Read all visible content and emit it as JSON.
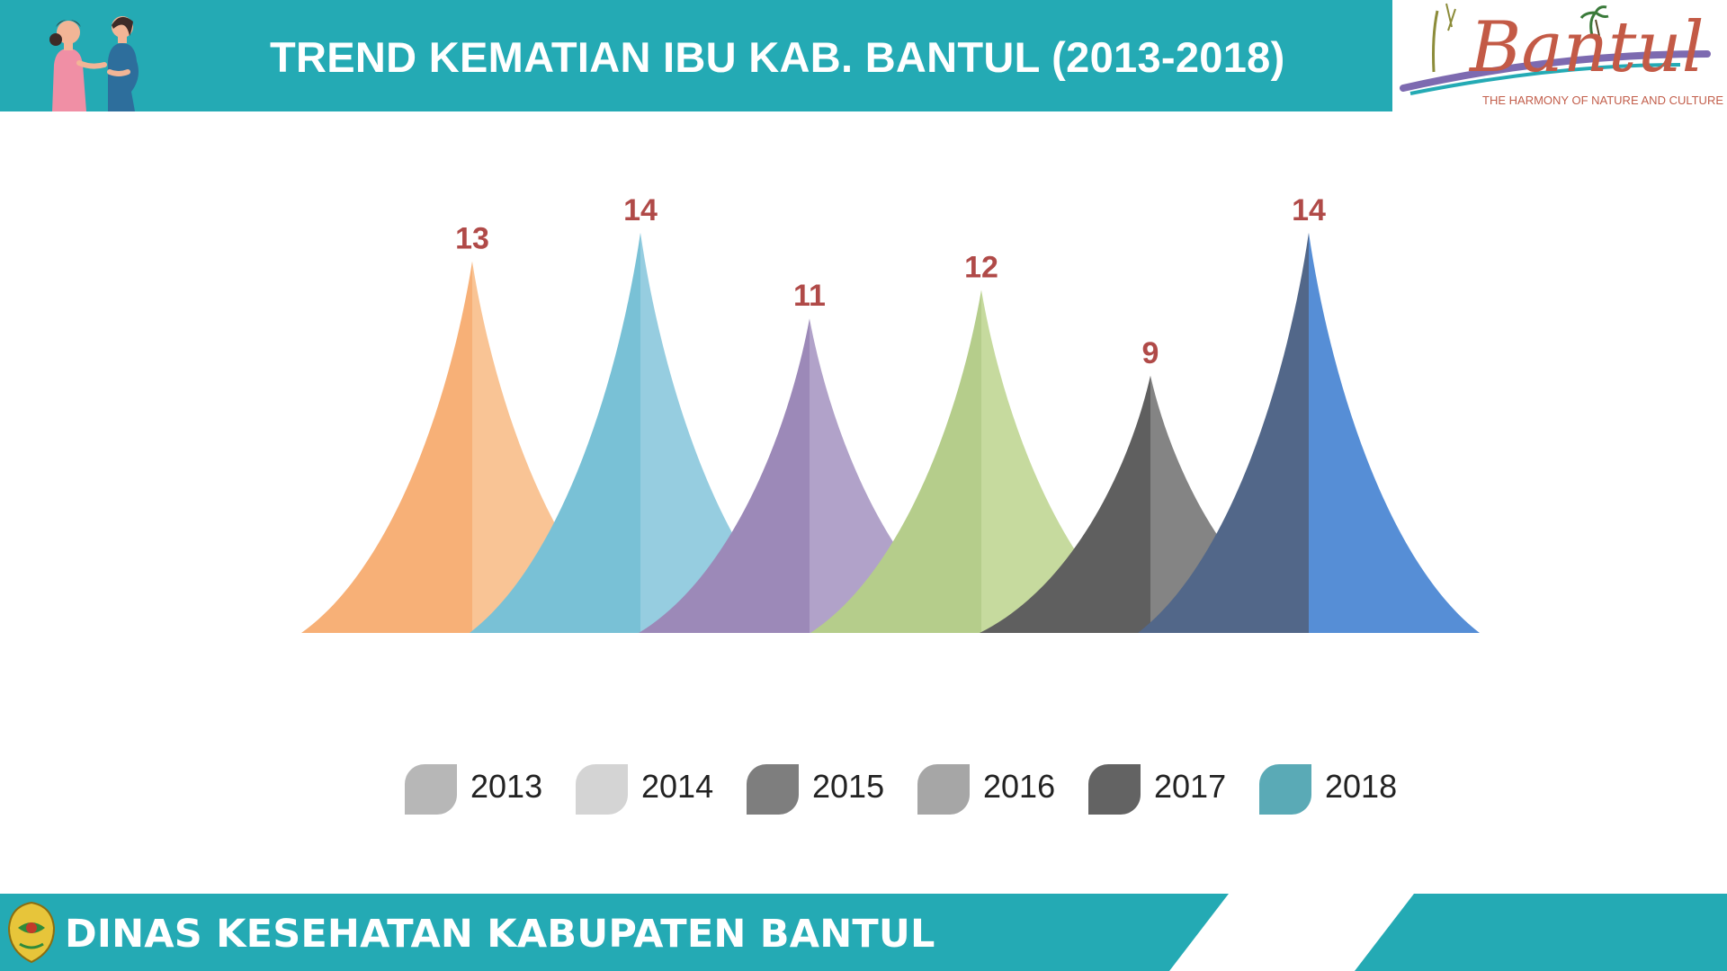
{
  "header": {
    "title": "TREND KEMATIAN IBU KAB. BANTUL (2013-2018)",
    "illustration_icon": "mother-and-pregnant-woman-icon",
    "logo": {
      "wordmark": "Bantul",
      "tagline": "THE HARMONY OF NATURE AND CULTURE"
    }
  },
  "chart_data": {
    "type": "bar",
    "title": "",
    "categories": [
      "2013",
      "2014",
      "2015",
      "2016",
      "2017",
      "2018"
    ],
    "values": [
      13,
      14,
      11,
      12,
      9,
      14
    ],
    "data_labels": [
      "13",
      "14",
      "11",
      "12",
      "9",
      "14"
    ],
    "mark_shape": "peak",
    "xlabel": "",
    "ylabel": "",
    "ylim": [
      0,
      14
    ],
    "grid": false,
    "legend": "bottom",
    "peak_colors": [
      [
        "#f7b077",
        "#f9c495"
      ],
      [
        "#79c1d6",
        "#96cde0"
      ],
      [
        "#9c89b8",
        "#b1a2c9"
      ],
      [
        "#b5cd8b",
        "#c6da9e"
      ],
      [
        "#5f5f5f",
        "#848484"
      ],
      [
        "#526789",
        "#568ed6"
      ]
    ],
    "legend_colors": [
      "#b7b7b7",
      "#d4d4d4",
      "#7e7e7e",
      "#a6a6a6",
      "#636363",
      "#5aaab6"
    ],
    "label_color": "#b04a48"
  },
  "footer": {
    "text": "DINAS KESEHATAN KABUPATEN BANTUL",
    "emblem_icon": "bantul-regency-emblem-icon",
    "color": "#24aab4"
  }
}
